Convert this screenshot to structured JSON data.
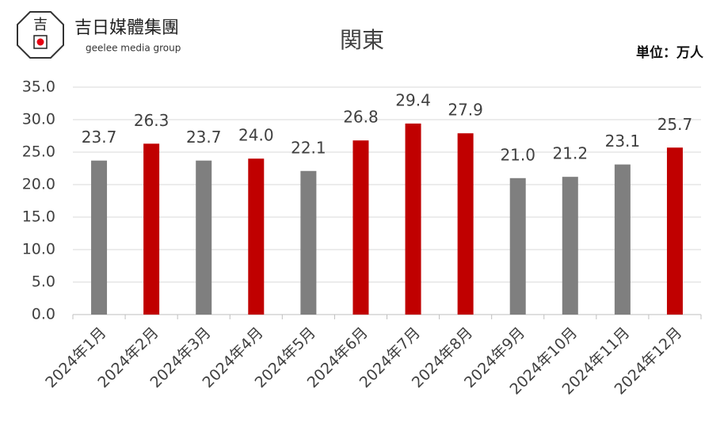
{
  "logo": {
    "mark": "吉",
    "name": "吉日媒體集團",
    "tagline": "geelee media group"
  },
  "chart_data": {
    "type": "bar",
    "title": "関東",
    "unit": "単位：万人",
    "categories": [
      "2024年1月",
      "2024年2月",
      "2024年3月",
      "2024年4月",
      "2024年5月",
      "2024年6月",
      "2024年7月",
      "2024年8月",
      "2024年9月",
      "2024年10月",
      "2024年11月",
      "2024年12月"
    ],
    "values": [
      23.7,
      26.3,
      23.7,
      24.0,
      22.1,
      26.8,
      29.4,
      27.9,
      21.0,
      21.2,
      23.1,
      25.7
    ],
    "value_labels": [
      "23.7",
      "26.3",
      "23.7",
      "24.0",
      "22.1",
      "26.8",
      "29.4",
      "27.9",
      "21.0",
      "21.2",
      "23.1",
      "25.7"
    ],
    "colors": [
      "#7f7f7f",
      "#c00000",
      "#7f7f7f",
      "#c00000",
      "#7f7f7f",
      "#c00000",
      "#c00000",
      "#c00000",
      "#7f7f7f",
      "#7f7f7f",
      "#7f7f7f",
      "#c00000"
    ],
    "ylim": [
      0,
      35
    ],
    "yticks": [
      {
        "value": 0,
        "label": "0.0"
      },
      {
        "value": 5,
        "label": "5.0"
      },
      {
        "value": 10,
        "label": "10.0"
      },
      {
        "value": 15,
        "label": "15.0"
      },
      {
        "value": 20,
        "label": "20.0"
      },
      {
        "value": 25,
        "label": "25.0"
      },
      {
        "value": 30,
        "label": "30.0"
      },
      {
        "value": 35,
        "label": "35.0"
      }
    ],
    "grid": true
  }
}
